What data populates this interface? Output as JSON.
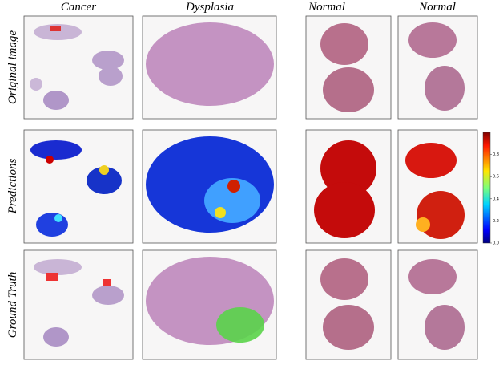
{
  "columns": [
    "Cancer",
    "Dysplasia",
    "Normal",
    "Normal"
  ],
  "rows": [
    "Original image",
    "Predictions",
    "Ground Truth"
  ],
  "colorbar": {
    "range": [
      0,
      1
    ],
    "ticks": [
      {
        "value": 0,
        "label": "0.0"
      },
      0.2,
      0.4,
      0.6,
      0.8
    ]
  }
}
